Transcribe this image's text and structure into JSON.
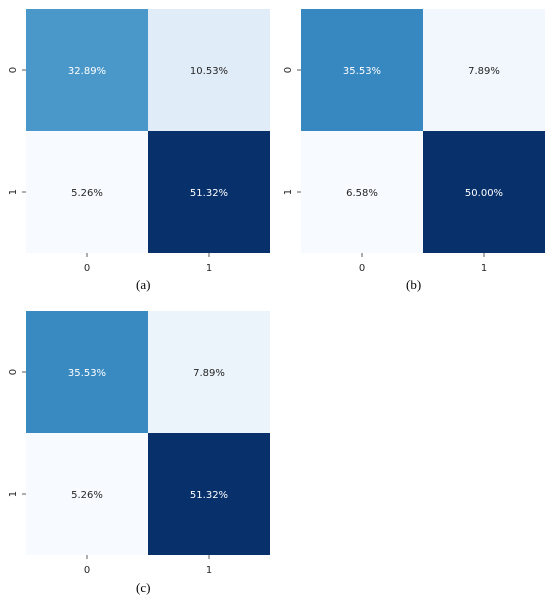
{
  "chart_data": [
    {
      "type": "heatmap",
      "caption": "(a)",
      "x_tick_labels": [
        "0",
        "1"
      ],
      "y_tick_labels": [
        "0",
        "1"
      ],
      "cells": [
        [
          "32.89%",
          "10.53%"
        ],
        [
          "5.26%",
          "51.32%"
        ]
      ],
      "values": [
        [
          32.89,
          10.53
        ],
        [
          5.26,
          51.32
        ]
      ],
      "colormap": "Blues",
      "colorbar": false
    },
    {
      "type": "heatmap",
      "caption": "(b)",
      "x_tick_labels": [
        "0",
        "1"
      ],
      "y_tick_labels": [
        "0",
        "1"
      ],
      "cells": [
        [
          "35.53%",
          "7.89%"
        ],
        [
          "6.58%",
          "50.00%"
        ]
      ],
      "values": [
        [
          35.53,
          7.89
        ],
        [
          6.58,
          50.0
        ]
      ],
      "colormap": "Blues",
      "colorbar": false
    },
    {
      "type": "heatmap",
      "caption": "(c)",
      "x_tick_labels": [
        "0",
        "1"
      ],
      "y_tick_labels": [
        "0",
        "1"
      ],
      "cells": [
        [
          "35.53%",
          "7.89%"
        ],
        [
          "5.26%",
          "51.32%"
        ]
      ],
      "values": [
        [
          35.53,
          7.89
        ],
        [
          5.26,
          51.32
        ]
      ],
      "colormap": "Blues",
      "colorbar": false
    }
  ]
}
